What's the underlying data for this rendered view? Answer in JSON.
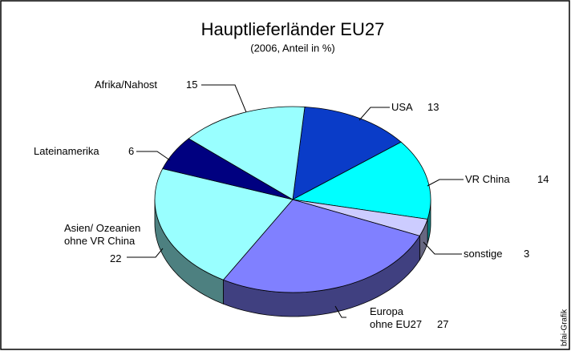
{
  "chart_data": {
    "type": "pie3d",
    "title": "Hauptlieferländer EU27",
    "subtitle": "(2006, Anteil in %)",
    "categories": [
      "USA",
      "VR China",
      "sonstige",
      "Europa\nohne EU27",
      "Asien/ Ozeanien\nohne VR China",
      "Lateinamerika",
      "Afrika/Nahost"
    ],
    "values": [
      13,
      14,
      3,
      27,
      22,
      6,
      15
    ],
    "colors": [
      "#0a3cc8",
      "#00ffff",
      "#ccccff",
      "#8080ff",
      "#99ffff",
      "#000080",
      "#99ffff"
    ],
    "source": "bfai-Grafik"
  }
}
